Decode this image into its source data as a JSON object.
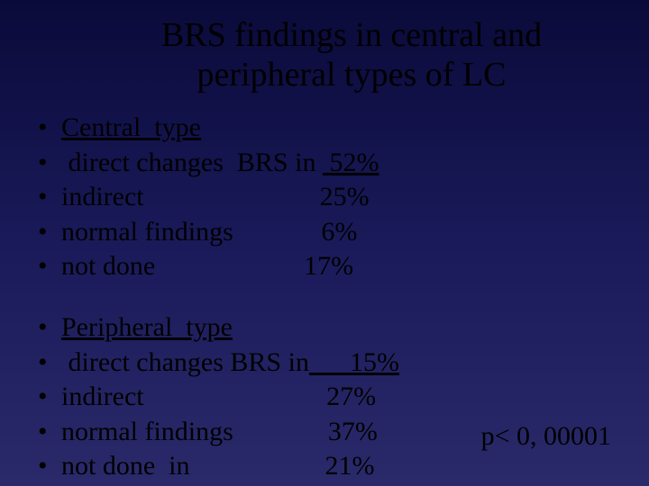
{
  "background": {
    "gradient_top": "#0a0a3a",
    "gradient_mid": "#1a1a5a",
    "gradient_bottom": "#2a2a6a"
  },
  "typography": {
    "family": "Times New Roman",
    "title_fontsize": 38,
    "body_fontsize": 30,
    "color": "#000000"
  },
  "title": {
    "line1": "BRS findings in central and",
    "line2": "peripheral types of LC"
  },
  "blocks": [
    {
      "heading": "Central  type",
      "heading_underline": true,
      "rows": [
        {
          "label": " direct changes  BRS in ",
          "value": " 52%",
          "value_underline": true
        },
        {
          "label": "indirect",
          "value": "                          25%"
        },
        {
          "label": "normal findings",
          "value": "             6%"
        },
        {
          "label": "not done",
          "value": "                      17%"
        }
      ]
    },
    {
      "heading": "Peripheral  type",
      "heading_underline": true,
      "rows": [
        {
          "label": " direct changes BRS in",
          "value": "      15%",
          "value_underline": true
        },
        {
          "label": "indirect",
          "value": "                           27%"
        },
        {
          "label": "normal findings",
          "value": "              37%"
        },
        {
          "label": "not done  in",
          "value": "                    21%"
        }
      ]
    }
  ],
  "pvalue": "p< 0, 00001",
  "bullet_char": "•"
}
